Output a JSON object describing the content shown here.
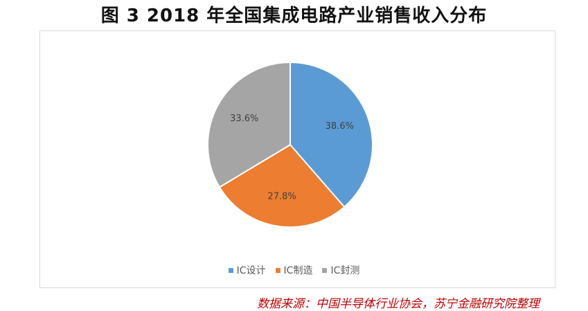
{
  "title": "图 3 2018 年全国集成电路产业销售收入分布",
  "source": "数据来源：中国半导体行业协会，苏宁金融研究院整理",
  "chart_data": {
    "type": "pie",
    "categories": [
      "IC设计",
      "IC制造",
      "IC封测"
    ],
    "values": [
      38.6,
      27.8,
      33.6
    ],
    "labels": [
      "38.6%",
      "27.8%",
      "33.6%"
    ],
    "colors": [
      "#5b9bd5",
      "#ed7d31",
      "#a5a5a5"
    ],
    "legend_position": "bottom"
  }
}
